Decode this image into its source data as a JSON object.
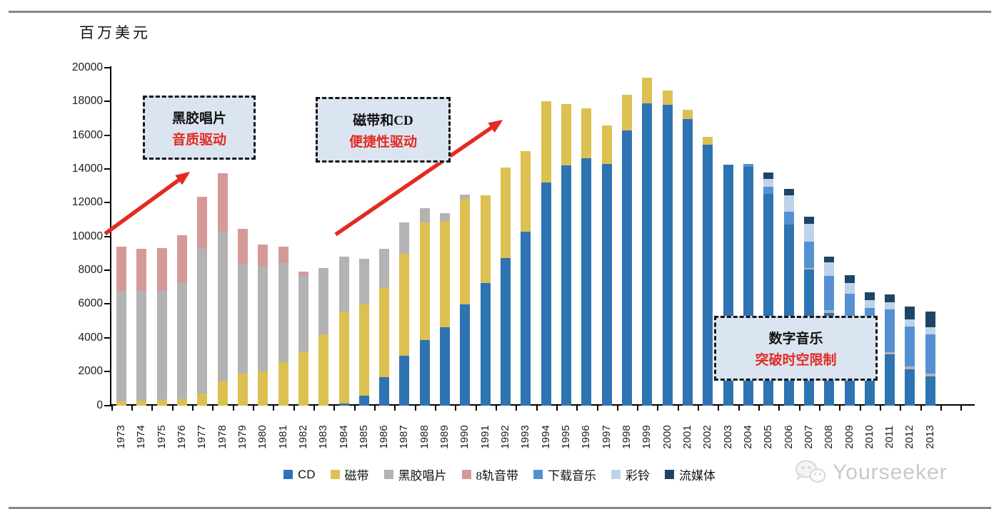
{
  "page": {
    "unit_label": "百万美元",
    "watermark_text": "Yourseeker"
  },
  "annotations": [
    {
      "line1": "黑胶唱片",
      "line2": "音质驱动"
    },
    {
      "line1": "磁带和CD",
      "line2": "便捷性驱动"
    },
    {
      "line1": "数字音乐",
      "line2": "突破时空限制"
    }
  ],
  "colors": {
    "cd": "#2e73b2",
    "cassette": "#ddc052",
    "vinyl": "#b3b3b3",
    "track8": "#d59a97",
    "download": "#5591d2",
    "ringtone": "#bdd3ea",
    "streaming": "#1e4566",
    "accent_red": "#e32b23",
    "annotation_bg": "#dbe5f1",
    "annotation_border": "#161616",
    "axis": "#000000",
    "watermark": "#c9c9c9"
  },
  "chart_data": {
    "type": "bar",
    "stacked": true,
    "unit": "百万美元",
    "ylabel": "百万美元",
    "xlabel": "",
    "ylim": [
      0,
      20000
    ],
    "ytick_step": 2000,
    "grid": false,
    "legend_position": "bottom",
    "categories": [
      1973,
      1974,
      1975,
      1976,
      1977,
      1978,
      1979,
      1980,
      1981,
      1982,
      1983,
      1984,
      1985,
      1986,
      1987,
      1988,
      1989,
      1990,
      1991,
      1992,
      1993,
      1994,
      1995,
      1996,
      1997,
      1998,
      1999,
      2000,
      2001,
      2002,
      2003,
      2004,
      2005,
      2006,
      2007,
      2008,
      2009,
      2010,
      2011,
      2012,
      2013
    ],
    "series": [
      {
        "name": "CD",
        "color_key": "cd",
        "values": [
          0,
          0,
          0,
          0,
          0,
          0,
          0,
          0,
          0,
          0,
          0,
          100,
          590,
          1680,
          2950,
          3860,
          4640,
          5980,
          7250,
          8730,
          10280,
          13200,
          14220,
          14650,
          14300,
          16300,
          17890,
          17790,
          16940,
          15450,
          14250,
          14150,
          12530,
          10700,
          8050,
          5480,
          4200,
          3300,
          3020,
          2140,
          1720
        ]
      },
      {
        "name": "磁带",
        "color_key": "cassette",
        "values": [
          250,
          270,
          300,
          360,
          700,
          1400,
          1900,
          2000,
          2540,
          3180,
          4190,
          5450,
          5390,
          5310,
          6020,
          6980,
          6300,
          6270,
          5190,
          5350,
          4790,
          4800,
          3630,
          2960,
          2280,
          2110,
          1520,
          870,
          570,
          460,
          0,
          0,
          0,
          0,
          0,
          0,
          0,
          0,
          0,
          0,
          0
        ]
      },
      {
        "name": "黑胶唱片",
        "color_key": "vinyl",
        "values": [
          6550,
          6510,
          6480,
          6940,
          8600,
          8900,
          6480,
          6200,
          5890,
          4490,
          3940,
          3250,
          2710,
          2300,
          1870,
          840,
          460,
          250,
          0,
          0,
          0,
          0,
          0,
          0,
          0,
          0,
          0,
          0,
          0,
          0,
          0,
          0,
          0,
          0,
          80,
          150,
          80,
          100,
          140,
          170,
          170
        ]
      },
      {
        "name": "8轨音带",
        "color_key": "track8",
        "values": [
          2600,
          2500,
          2540,
          2780,
          3070,
          3460,
          2090,
          1320,
          970,
          250,
          0,
          0,
          0,
          0,
          0,
          0,
          0,
          0,
          0,
          0,
          0,
          0,
          0,
          0,
          0,
          0,
          0,
          0,
          0,
          0,
          0,
          0,
          0,
          0,
          0,
          0,
          0,
          0,
          0,
          0,
          0
        ]
      },
      {
        "name": "下载音乐",
        "color_key": "download",
        "values": [
          0,
          0,
          0,
          0,
          0,
          0,
          0,
          0,
          0,
          0,
          0,
          0,
          0,
          0,
          0,
          0,
          0,
          0,
          0,
          0,
          0,
          0,
          0,
          0,
          0,
          0,
          0,
          0,
          0,
          0,
          0,
          150,
          400,
          780,
          1580,
          2040,
          2330,
          2370,
          2540,
          2340,
          2320
        ]
      },
      {
        "name": "彩铃",
        "color_key": "ringtone",
        "values": [
          0,
          0,
          0,
          0,
          0,
          0,
          0,
          0,
          0,
          0,
          0,
          0,
          0,
          0,
          0,
          0,
          0,
          0,
          0,
          0,
          0,
          0,
          0,
          0,
          0,
          0,
          0,
          0,
          0,
          0,
          0,
          0,
          490,
          960,
          1060,
          820,
          640,
          460,
          420,
          460,
          430
        ]
      },
      {
        "name": "流媒体",
        "color_key": "streaming",
        "values": [
          0,
          0,
          0,
          0,
          0,
          0,
          0,
          0,
          0,
          0,
          0,
          0,
          0,
          0,
          0,
          0,
          0,
          0,
          0,
          0,
          0,
          0,
          0,
          0,
          0,
          0,
          0,
          0,
          0,
          0,
          0,
          0,
          380,
          380,
          400,
          330,
          450,
          450,
          450,
          760,
          910
        ]
      }
    ]
  }
}
